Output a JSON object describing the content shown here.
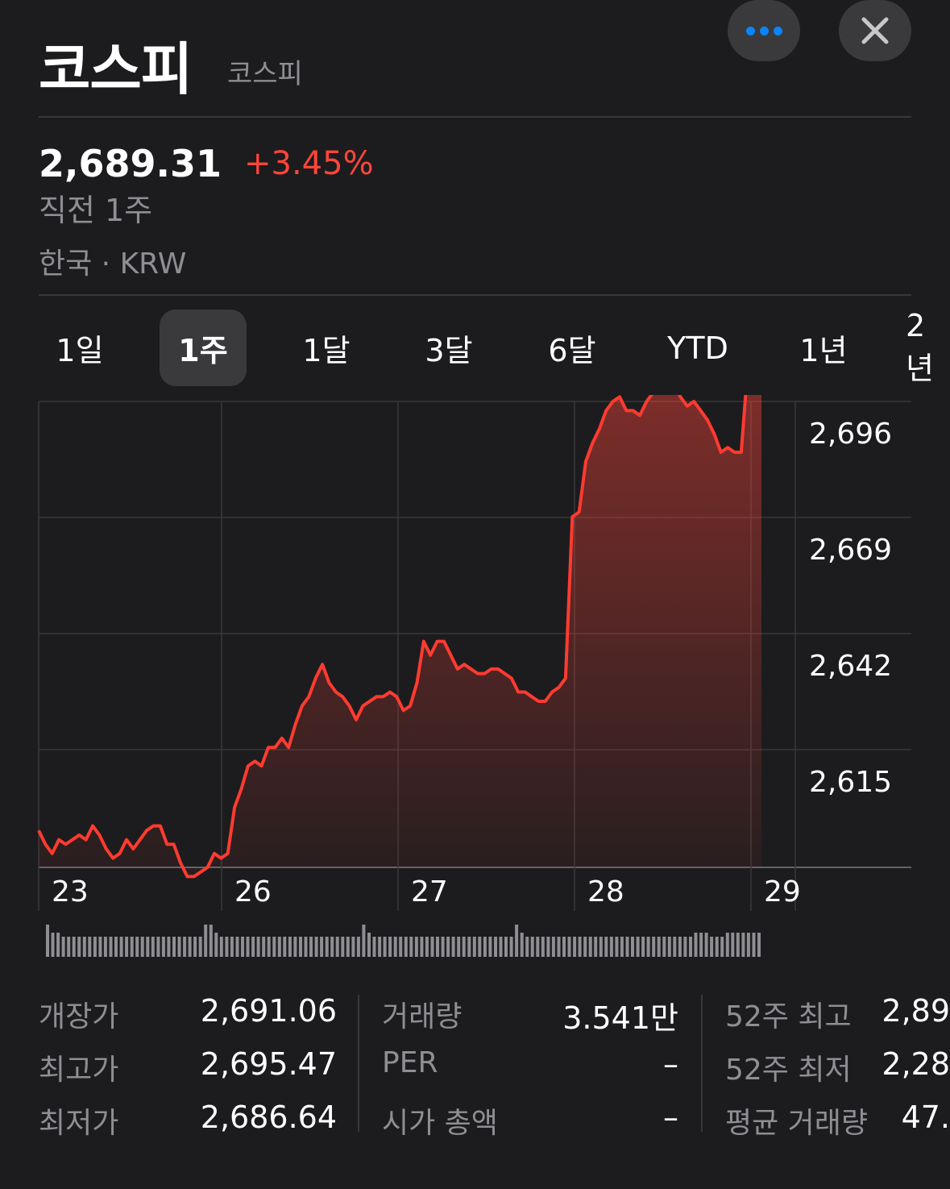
{
  "header": {
    "title": "코스피",
    "subtitle": "코스피",
    "more_icon": "more-dots-icon",
    "close_icon": "close-x-icon"
  },
  "quote": {
    "price": "2,689.31",
    "change": "+3.45%",
    "period": "직전 1주",
    "market": "한국 · KRW"
  },
  "colors": {
    "accent": "#ff453a",
    "link": "#0a84ff",
    "background": "#1c1c1e"
  },
  "tabs": [
    {
      "label": "1일",
      "selected": false
    },
    {
      "label": "1주",
      "selected": true
    },
    {
      "label": "1달",
      "selected": false
    },
    {
      "label": "3달",
      "selected": false
    },
    {
      "label": "6달",
      "selected": false
    },
    {
      "label": "YTD",
      "selected": false
    },
    {
      "label": "1년",
      "selected": false
    },
    {
      "label": "2년",
      "selected": false
    }
  ],
  "chart_data": {
    "type": "area",
    "title": "",
    "xlabel": "",
    "ylabel": "",
    "y_ticks": [
      "2,696",
      "2,669",
      "2,642",
      "2,615"
    ],
    "x_ticks": [
      "23",
      "26",
      "27",
      "28",
      "29"
    ],
    "ylim": [
      2602,
      2703
    ],
    "series": [
      {
        "values": [
          2610,
          2607,
          2605,
          2608,
          2607,
          2608,
          2609,
          2608,
          2611,
          2609,
          2606,
          2604,
          2605,
          2608,
          2606,
          2608,
          2610,
          2611,
          2611,
          2607,
          2607,
          2603,
          2600,
          2600,
          2601,
          2602,
          2605,
          2604,
          2605,
          2615,
          2619,
          2624,
          2625,
          2624,
          2628,
          2628,
          2630,
          2628,
          2633,
          2637,
          2639,
          2643,
          2646,
          2642,
          2640,
          2639,
          2637,
          2634,
          2637,
          2638,
          2639,
          2639,
          2640,
          2639,
          2636,
          2637,
          2642,
          2651,
          2648,
          2651,
          2651,
          2648,
          2645,
          2646,
          2645,
          2644,
          2644,
          2645,
          2645,
          2644,
          2643,
          2640,
          2640,
          2639,
          2638,
          2638,
          2640,
          2641,
          2643,
          2678,
          2679,
          2690,
          2694,
          2697,
          2701,
          2703,
          2704,
          2701,
          2701,
          2700,
          2703,
          2705,
          2706,
          2708,
          2707,
          2704,
          2702,
          2703,
          2701,
          2699,
          2696,
          2692,
          2693,
          2692,
          2692,
          2711,
          2710,
          2709
        ]
      }
    ],
    "volume": [
      8,
      6,
      6,
      5,
      5,
      5,
      5,
      5,
      5,
      5,
      5,
      5,
      5,
      5,
      5,
      5,
      5,
      5,
      5,
      5,
      5,
      5,
      5,
      5,
      5,
      5,
      5,
      5,
      5,
      5,
      8,
      8,
      6,
      5,
      5,
      5,
      5,
      5,
      5,
      5,
      5,
      5,
      5,
      5,
      5,
      5,
      5,
      5,
      5,
      5,
      5,
      5,
      5,
      5,
      5,
      5,
      5,
      5,
      5,
      5,
      8,
      6,
      5,
      5,
      5,
      5,
      5,
      5,
      5,
      5,
      5,
      5,
      5,
      5,
      5,
      5,
      5,
      5,
      5,
      5,
      5,
      5,
      5,
      5,
      5,
      5,
      5,
      5,
      5,
      8,
      6,
      5,
      5,
      5,
      5,
      5,
      5,
      5,
      5,
      5,
      5,
      5,
      5,
      5,
      5,
      5,
      5,
      5,
      5,
      5,
      5,
      5,
      5,
      5,
      5,
      5,
      5,
      5,
      5,
      5,
      5,
      5,
      5,
      6,
      6,
      6,
      5,
      5,
      5,
      6,
      6,
      6,
      6,
      6,
      6,
      6
    ]
  },
  "stats": {
    "col1": [
      {
        "label": "개장가",
        "value": "2,691.06"
      },
      {
        "label": "최고가",
        "value": "2,695.47"
      },
      {
        "label": "최저가",
        "value": "2,686.64"
      }
    ],
    "col2": [
      {
        "label": "거래량",
        "value": "3.541만"
      },
      {
        "label": "PER",
        "value": "–"
      },
      {
        "label": "시가 총액",
        "value": "–"
      }
    ],
    "col3": [
      {
        "label": "52주 최고",
        "value": "2,89"
      },
      {
        "label": "52주 최저",
        "value": "2,28"
      },
      {
        "label": "평균 거래량",
        "value": "47."
      }
    ]
  }
}
